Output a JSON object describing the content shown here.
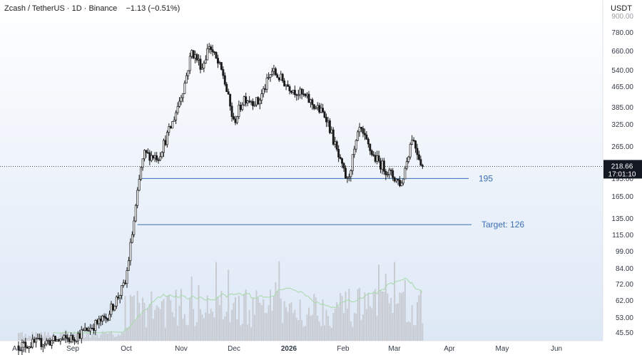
{
  "header": {
    "symbol": "Zcash / TetherUS",
    "interval": "1D",
    "exchange": "Binance",
    "change": "−1.13 (−0.51%)",
    "currency": "USDT"
  },
  "chart_data": {
    "type": "candlestick",
    "x_tick_labels": [
      "Aug",
      "Sep",
      "Oct",
      "Nov",
      "Dec",
      "2026",
      "Feb",
      "Mar",
      "Apr",
      "May",
      "Jun"
    ],
    "y_tick_labels": [
      "780.00",
      "660.00",
      "540.00",
      "465.00",
      "385.00",
      "325.00",
      "265.00",
      "195.00",
      "165.00",
      "135.00",
      "115.00",
      "99.00",
      "84.00",
      "72.00",
      "62.00",
      "53.00",
      "45.50"
    ],
    "y_scale": "log",
    "last_price": {
      "value": 218.66,
      "label": "218.66",
      "countdown": "17:01:10"
    },
    "annotations": [
      {
        "label": "195",
        "value": 195
      },
      {
        "label": "Target: 126",
        "value": 126
      }
    ],
    "price_path": [
      {
        "x": "Aug 01",
        "y": 40
      },
      {
        "x": "Sep 01",
        "y": 43
      },
      {
        "x": "Sep 20",
        "y": 52
      },
      {
        "x": "Oct 01",
        "y": 72
      },
      {
        "x": "Oct 06",
        "y": 130
      },
      {
        "x": "Oct 10",
        "y": 215
      },
      {
        "x": "Oct 12",
        "y": 245
      },
      {
        "x": "Oct 20",
        "y": 240
      },
      {
        "x": "Oct 28",
        "y": 330
      },
      {
        "x": "Nov 04",
        "y": 480
      },
      {
        "x": "Nov 08",
        "y": 650
      },
      {
        "x": "Nov 14",
        "y": 560
      },
      {
        "x": "Nov 18",
        "y": 690
      },
      {
        "x": "Nov 26",
        "y": 520
      },
      {
        "x": "Dec 02",
        "y": 330
      },
      {
        "x": "Dec 08",
        "y": 420
      },
      {
        "x": "Dec 16",
        "y": 400
      },
      {
        "x": "Dec 24",
        "y": 540
      },
      {
        "x": "Jan 02",
        "y": 470
      },
      {
        "x": "Jan 12",
        "y": 420
      },
      {
        "x": "Jan 24",
        "y": 350
      },
      {
        "x": "Feb 01",
        "y": 225
      },
      {
        "x": "Feb 05",
        "y": 190
      },
      {
        "x": "Feb 12",
        "y": 310
      },
      {
        "x": "Feb 20",
        "y": 240
      },
      {
        "x": "Mar 01",
        "y": 205
      },
      {
        "x": "Mar 08",
        "y": 185
      },
      {
        "x": "Mar 14",
        "y": 290
      },
      {
        "x": "Mar 20",
        "y": 218.66
      }
    ],
    "colors": {
      "candle": "#1a1a1a",
      "annotation_line": "#3b6fb5",
      "volume": "#c8ccd2",
      "volume_ma": "#a7d9a7",
      "background_top": "#ffffff",
      "background_bottom": "#dde8f6"
    }
  }
}
